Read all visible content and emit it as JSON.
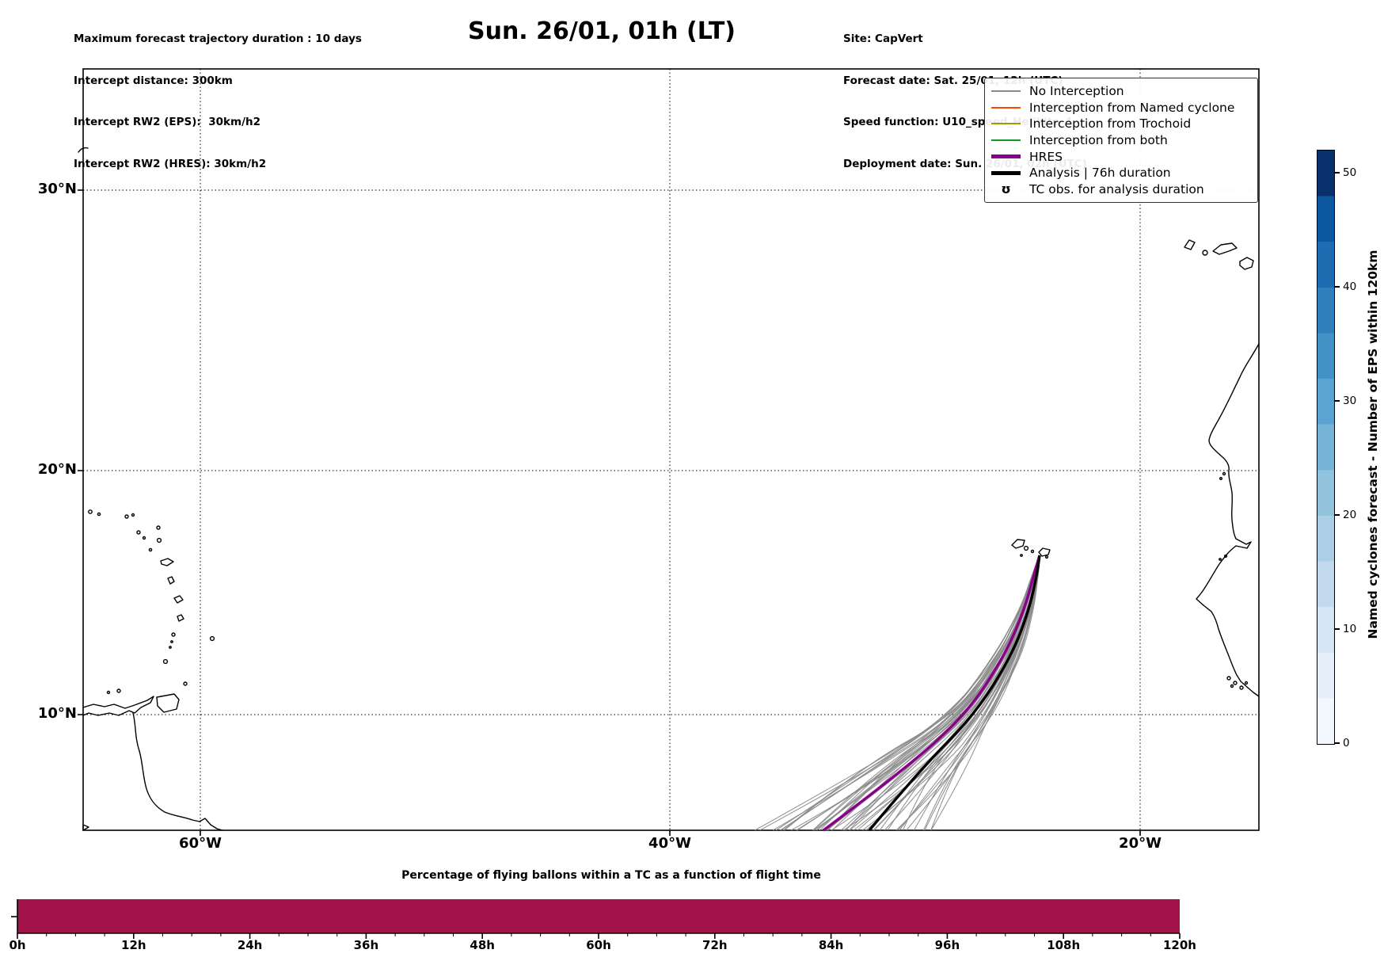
{
  "header": {
    "info_left": [
      "Maximum forecast trajectory duration : 10 days",
      "Intercept distance: 300km",
      "Intercept RW2 (EPS):  30km/h2",
      "Intercept RW2 (HRES): 30km/h2"
    ],
    "title": "Sun. 26/01, 01h (LT)",
    "info_right": [
      "Site: CapVert",
      "Forecast date: Sat. 25/01, 12h (UTC)",
      "Speed function: U10_speed_Helikite_4",
      "Deployment date: Sun. 26/01, 02h (UTC)"
    ]
  },
  "map": {
    "lat_labels": [
      "30°N",
      "20°N",
      "10°N"
    ],
    "lon_labels": [
      "60°W",
      "40°W",
      "20°W"
    ],
    "legend": {
      "items": [
        {
          "label": "No Interception",
          "color": "#8a8a8a",
          "lw": 2
        },
        {
          "label": "Interception from Named cyclone",
          "color": "#ff4500",
          "lw": 2
        },
        {
          "label": "Interception from Trochoid",
          "color": "#9e9a00",
          "lw": 2
        },
        {
          "label": "Interception from both",
          "color": "#149a28",
          "lw": 2
        },
        {
          "label": "HRES",
          "color": "#8a008a",
          "lw": 5
        },
        {
          "label": "Analysis | 76h duration",
          "color": "#000000",
          "lw": 5
        },
        {
          "label": "TC obs. for analysis duration",
          "marker": "ʊ",
          "color": "#000000"
        }
      ]
    },
    "trajectories": {
      "ensemble_color": "#8a8a8a",
      "ensemble_count": 48,
      "hres_color": "#8a008a",
      "analysis_color": "#000000"
    }
  },
  "colorbar": {
    "label": "Named cyclones forecast - Number of EPS within 120km",
    "ticks": [
      0,
      10,
      20,
      30,
      40,
      50
    ],
    "step_colors": [
      "#f3f8fe",
      "#e5eff9",
      "#d6e6f4",
      "#c3daee",
      "#abcfe5",
      "#93c4de",
      "#76b4d8",
      "#5ba3d0",
      "#4292c6",
      "#2f7fbc",
      "#1e6db2",
      "#0d57a1",
      "#08306b"
    ]
  },
  "chart_data": [
    {
      "type": "line",
      "panel": "trajectory-map",
      "title": "Sun. 26/01, 01h (LT)",
      "x_ticks": [
        "60°W",
        "40°W",
        "20°W"
      ],
      "y_ticks": [
        "30°N",
        "20°N",
        "10°N"
      ],
      "lon_range_deg_west": [
        65,
        15
      ],
      "lat_range_deg_north": [
        5.5,
        34.5
      ],
      "grid": true,
      "legend_position": "upper right",
      "series": [
        {
          "name": "No Interception",
          "style": "thin gray",
          "members_approx": 48,
          "path_deg": {
            "start": {
              "lat_n": 16.5,
              "lon_w": 24.2
            },
            "via": {
              "lat_n": 10.0,
              "lon_w": [
                27.0,
                28.9
              ]
            },
            "end_spread": {
              "lat_n": [
                5.3,
                6.5
              ],
              "lon_w": [
                33.5,
                39.7
              ]
            }
          }
        },
        {
          "name": "HRES",
          "style": "thick purple",
          "path_deg": {
            "start": {
              "lat_n": 16.5,
              "lon_w": 24.2
            },
            "via": {
              "lat_n": 10.0,
              "lon_w": 27.4
            },
            "end": {
              "lat_n": 5.3,
              "lon_w": 37.0
            }
          }
        },
        {
          "name": "Analysis | 76h duration",
          "style": "thick black",
          "path_deg": {
            "start": {
              "lat_n": 16.5,
              "lon_w": 24.2
            },
            "via": {
              "lat_n": 10.0,
              "lon_w": 27.0
            },
            "end": {
              "lat_n": 5.3,
              "lon_w": 35.0
            }
          }
        }
      ],
      "release_point": {
        "name": "CapVert (Cape Verde)",
        "lat_n": 16.5,
        "lon_w": 24.2
      }
    },
    {
      "type": "bar",
      "panel": "tc-percentage-timeline",
      "title": "Percentage of flying ballons within a TC as a function of flight time",
      "x_tick_labels": [
        "0h",
        "12h",
        "24h",
        "36h",
        "48h",
        "60h",
        "72h",
        "84h",
        "96h",
        "108h",
        "120h"
      ],
      "x_range_hours": [
        0,
        120
      ],
      "minor_tick_step_hours": 3,
      "values_note": "single continuous full-height bar over 0-120h; y-axis tick unlabeled",
      "value_percent_est": 100,
      "bar_color": "#a31349"
    }
  ]
}
